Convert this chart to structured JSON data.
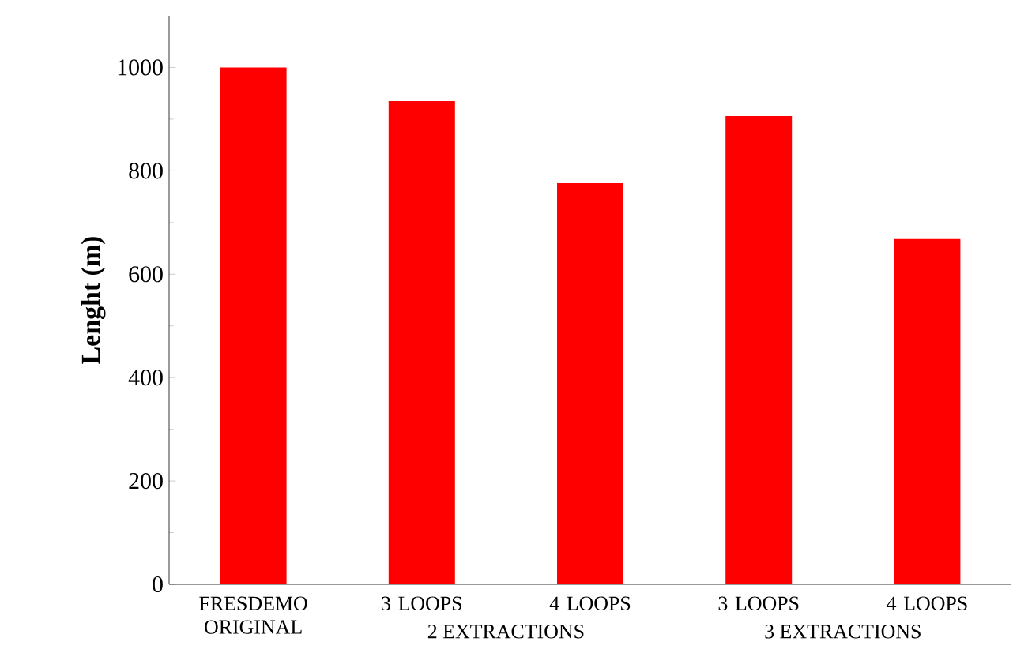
{
  "chart_data": {
    "type": "bar",
    "ylabel": "Lenght (m)",
    "categories": [
      "FRESDEMO ORIGINAL",
      "3 LOOPS",
      "4 LOOPS",
      "3 LOOPS",
      "4 LOOPS"
    ],
    "values": [
      1000,
      935,
      776,
      906,
      668
    ],
    "color": "#ff0000",
    "ylim": [
      0,
      1100
    ],
    "yticks": [
      0,
      200,
      400,
      600,
      800,
      1000
    ],
    "annotations": [
      "2 EXTRACTIONS",
      "3 EXTRACTIONS"
    ]
  }
}
